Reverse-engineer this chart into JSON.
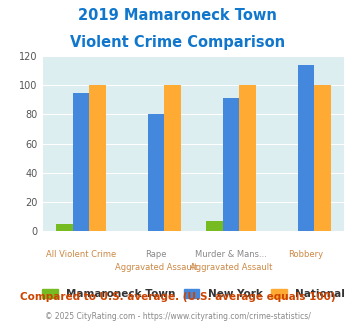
{
  "title_line1": "2019 Mamaroneck Town",
  "title_line2": "Violent Crime Comparison",
  "cat_labels_top": [
    "",
    "Rape",
    "Murder & Mans...",
    ""
  ],
  "cat_labels_bottom": [
    "All Violent Crime",
    "Aggravated Assault",
    "Aggravated Assault",
    "Robbery"
  ],
  "mamaroneck": [
    5,
    0,
    7,
    0
  ],
  "new_york": [
    95,
    80,
    91,
    114
  ],
  "national": [
    100,
    100,
    100,
    100
  ],
  "colors": {
    "mamaroneck": "#77bb22",
    "new_york": "#4488dd",
    "national": "#ffaa33"
  },
  "ylim": [
    0,
    120
  ],
  "yticks": [
    0,
    20,
    40,
    60,
    80,
    100,
    120
  ],
  "bg_color": "#ddeef0",
  "title_color": "#1177cc",
  "xlabel_color_top": "#888888",
  "xlabel_color_bottom": "#cc8844",
  "legend_labels": [
    "Mamaroneck Town",
    "New York",
    "National"
  ],
  "footnote1": "Compared to U.S. average. (U.S. average equals 100)",
  "footnote2": "© 2025 CityRating.com - https://www.cityrating.com/crime-statistics/",
  "footnote1_color": "#cc4400",
  "footnote2_color": "#888888"
}
